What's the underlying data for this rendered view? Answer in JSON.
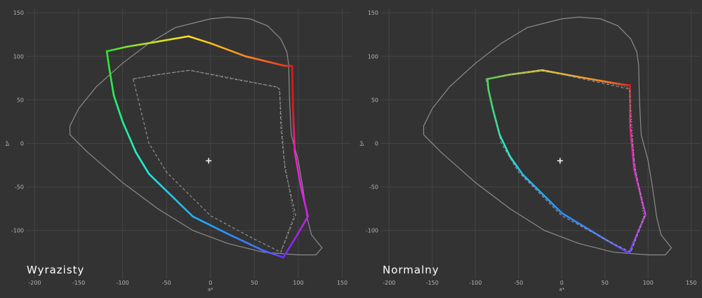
{
  "colors": {
    "background": "#333333",
    "grid": "#454545",
    "tick_text": "#b4b4b4",
    "locus": "#8c8c8c",
    "reference": "#9a9a9a",
    "white_point": "#f2f2f2",
    "panel_title": "#ffffff"
  },
  "chart_data": [
    {
      "type": "line",
      "title": "Wyrazisty",
      "xlabel": "a*",
      "ylabel": "b*",
      "xlim": [
        -210,
        160
      ],
      "ylim": [
        -155,
        155
      ],
      "xticks": [
        -200,
        -150,
        -100,
        -50,
        0,
        50,
        100,
        150
      ],
      "yticks": [
        150,
        100,
        50,
        0,
        -50,
        -100
      ],
      "grid": true,
      "series": [
        {
          "style": "solid-gray",
          "points": [
            [
              20,
              145
            ],
            [
              0,
              143
            ],
            [
              -40,
              133
            ],
            [
              -70,
              115
            ],
            [
              -100,
              92
            ],
            [
              -130,
              65
            ],
            [
              -150,
              40
            ],
            [
              -160,
              20
            ],
            [
              -160,
              10
            ],
            [
              -140,
              -10
            ],
            [
              -100,
              -45
            ],
            [
              -60,
              -75
            ],
            [
              -20,
              -100
            ],
            [
              20,
              -115
            ],
            [
              60,
              -125
            ],
            [
              100,
              -128
            ],
            [
              120,
              -128
            ],
            [
              127,
              -120
            ],
            [
              115,
              -105
            ],
            [
              110,
              -85
            ],
            [
              105,
              -50
            ],
            [
              100,
              -20
            ],
            [
              92,
              10
            ],
            [
              90,
              50
            ],
            [
              89,
              90
            ],
            [
              87,
              105
            ],
            [
              80,
              120
            ],
            [
              65,
              135
            ],
            [
              45,
              143
            ],
            [
              20,
              145
            ]
          ]
        },
        {
          "style": "spectrum",
          "points": [
            [
              -117,
              106
            ],
            [
              -95,
              111
            ],
            [
              -65,
              116
            ],
            [
              -25,
              123
            ],
            [
              0,
              115
            ],
            [
              40,
              100
            ],
            [
              85,
              89
            ],
            [
              93,
              89
            ],
            [
              94,
              40
            ],
            [
              96,
              -10
            ],
            [
              103,
              -50
            ],
            [
              111,
              -84
            ],
            [
              97,
              -108
            ],
            [
              83,
              -131
            ],
            [
              60,
              -123
            ],
            [
              20,
              -104
            ],
            [
              -20,
              -84
            ],
            [
              -70,
              -35
            ],
            [
              -85,
              -10
            ],
            [
              -100,
              25
            ],
            [
              -110,
              55
            ],
            [
              -115,
              85
            ],
            [
              -118,
              106
            ]
          ],
          "colors": [
            "#30e030",
            "#80e030",
            "#c8e020",
            "#ffe020",
            "#ffc020",
            "#ff8a20",
            "#f03a20",
            "#e01818",
            "#e01818",
            "#f020c0",
            "#e820e8",
            "#c820e8",
            "#a020f0",
            "#6a30ff",
            "#4870ff",
            "#2890ff",
            "#20b0f8",
            "#20e8e0",
            "#20f0c0",
            "#20f090",
            "#28f060",
            "#30e838",
            "#30e030"
          ]
        },
        {
          "style": "dashed",
          "points": [
            [
              -88,
              74
            ],
            [
              -60,
              79
            ],
            [
              -23,
              84
            ],
            [
              20,
              75
            ],
            [
              75,
              65
            ],
            [
              79,
              62
            ],
            [
              80,
              20
            ],
            [
              85,
              -30
            ],
            [
              97,
              -82
            ],
            [
              80,
              -125
            ],
            [
              50,
              -110
            ],
            [
              0,
              -83
            ],
            [
              -50,
              -33
            ],
            [
              -70,
              0
            ],
            [
              -88,
              74
            ]
          ]
        },
        {
          "style": "dotted",
          "points": [
            [
              -88,
              74
            ],
            [
              -58,
              79
            ],
            [
              -25,
              84
            ],
            [
              20,
              76
            ],
            [
              78,
              64
            ],
            [
              80,
              40
            ],
            [
              84,
              -20
            ],
            [
              95,
              -83
            ],
            [
              80,
              -125
            ]
          ]
        }
      ],
      "white_point": [
        -2,
        -20
      ]
    },
    {
      "type": "line",
      "title": "Normalny",
      "xlabel": "a*",
      "ylabel": "b*",
      "xlim": [
        -210,
        160
      ],
      "ylim": [
        -155,
        155
      ],
      "xticks": [
        -200,
        -150,
        -100,
        -50,
        0,
        50,
        100,
        150
      ],
      "yticks": [
        150,
        100,
        50,
        0,
        -50,
        -100
      ],
      "grid": true,
      "series": [
        {
          "style": "solid-gray",
          "points": [
            [
              20,
              145
            ],
            [
              0,
              143
            ],
            [
              -40,
              133
            ],
            [
              -70,
              115
            ],
            [
              -100,
              92
            ],
            [
              -130,
              65
            ],
            [
              -150,
              40
            ],
            [
              -160,
              20
            ],
            [
              -160,
              10
            ],
            [
              -140,
              -10
            ],
            [
              -100,
              -45
            ],
            [
              -60,
              -75
            ],
            [
              -20,
              -100
            ],
            [
              20,
              -115
            ],
            [
              60,
              -125
            ],
            [
              100,
              -128
            ],
            [
              120,
              -128
            ],
            [
              127,
              -120
            ],
            [
              115,
              -105
            ],
            [
              110,
              -85
            ],
            [
              105,
              -50
            ],
            [
              100,
              -20
            ],
            [
              92,
              10
            ],
            [
              90,
              50
            ],
            [
              89,
              90
            ],
            [
              87,
              105
            ],
            [
              80,
              120
            ],
            [
              65,
              135
            ],
            [
              45,
              143
            ],
            [
              20,
              145
            ]
          ]
        },
        {
          "style": "spectrum",
          "points": [
            [
              -86,
              74
            ],
            [
              -60,
              79
            ],
            [
              -23,
              84
            ],
            [
              10,
              78
            ],
            [
              50,
              71
            ],
            [
              75,
              67
            ],
            [
              79,
              67
            ],
            [
              79,
              20
            ],
            [
              84,
              -30
            ],
            [
              97,
              -82
            ],
            [
              88,
              -102
            ],
            [
              78,
              -126
            ],
            [
              50,
              -110
            ],
            [
              0,
              -80
            ],
            [
              -45,
              -36
            ],
            [
              -60,
              -15
            ],
            [
              -72,
              10
            ],
            [
              -80,
              40
            ],
            [
              -85,
              62
            ],
            [
              -86,
              74
            ]
          ],
          "colors": [
            "#40e040",
            "#a0e030",
            "#ffe020",
            "#ffb020",
            "#ff7a20",
            "#f03020",
            "#e01818",
            "#e81880",
            "#e820d0",
            "#d020e8",
            "#a030f0",
            "#6a40ff",
            "#4878ff",
            "#2890ff",
            "#20c0f0",
            "#20e8d8",
            "#20f0b0",
            "#28f080",
            "#38e850",
            "#40e040"
          ]
        },
        {
          "style": "dashed",
          "points": [
            [
              -88,
              74
            ],
            [
              -60,
              79
            ],
            [
              -23,
              84
            ],
            [
              20,
              75
            ],
            [
              75,
              63
            ],
            [
              79,
              62
            ],
            [
              80,
              20
            ],
            [
              85,
              -30
            ],
            [
              97,
              -82
            ],
            [
              80,
              -125
            ],
            [
              50,
              -110
            ],
            [
              0,
              -83
            ],
            [
              -50,
              -33
            ],
            [
              -70,
              0
            ],
            [
              -88,
              74
            ]
          ]
        },
        {
          "style": "dotted",
          "points": [
            [
              -88,
              74
            ],
            [
              -58,
              79
            ],
            [
              -25,
              84
            ],
            [
              20,
              76
            ],
            [
              78,
              64
            ],
            [
              80,
              40
            ],
            [
              84,
              -20
            ],
            [
              95,
              -83
            ],
            [
              80,
              -125
            ]
          ]
        }
      ],
      "white_point": [
        -2,
        -20
      ]
    }
  ]
}
